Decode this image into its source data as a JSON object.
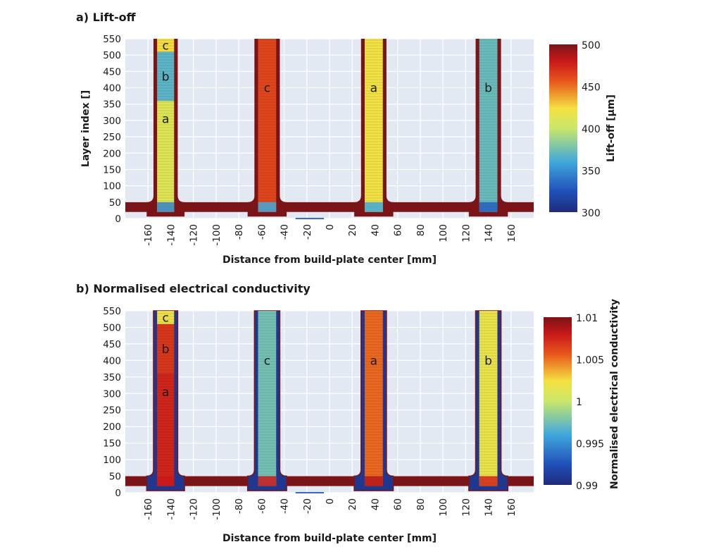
{
  "chart_data": [
    {
      "type": "heatmap",
      "panel": "a",
      "title": "a) Lift-off",
      "xlabel": "Distance from build-plate center [mm]",
      "ylabel": "Layer index []",
      "xlim": [
        -180,
        180
      ],
      "ylim": [
        0,
        550
      ],
      "xticks": [
        -160,
        -140,
        -120,
        -100,
        -80,
        -60,
        -40,
        -20,
        0,
        20,
        40,
        60,
        80,
        100,
        120,
        140,
        160
      ],
      "yticks": [
        0,
        50,
        100,
        150,
        200,
        250,
        300,
        350,
        400,
        450,
        500,
        550
      ],
      "grid": true,
      "colorbar": {
        "label": "Lift-off [µm]",
        "range": [
          300,
          500
        ],
        "ticks": [
          300,
          350,
          400,
          450,
          500
        ],
        "colormap": "jet"
      },
      "background": {
        "value": 500,
        "baseplate_top_layer": 50,
        "baseplate_bottom_layer": 20
      },
      "columns": [
        {
          "x_range": [
            -152,
            -137
          ],
          "segments": [
            {
              "label": "a",
              "layers": [
                20,
                360
              ],
              "value": 412
            },
            {
              "label": "b",
              "layers": [
                360,
                510
              ],
              "value": 368
            },
            {
              "label": "c",
              "layers": [
                510,
                550
              ],
              "value": 425
            }
          ],
          "bottom_value": 345
        },
        {
          "x_range": [
            -63,
            -47
          ],
          "segments": [
            {
              "label": "c",
              "layers": [
                20,
                550
              ],
              "value": 462
            }
          ],
          "bottom_value": 360
        },
        {
          "x_range": [
            31,
            47
          ],
          "segments": [
            {
              "label": "a",
              "layers": [
                20,
                550
              ],
              "value": 422
            }
          ],
          "bottom_value": 360
        },
        {
          "x_range": [
            132,
            148
          ],
          "segments": [
            {
              "label": "b",
              "layers": [
                20,
                550
              ],
              "value": 372
            }
          ],
          "bottom_value": 330
        }
      ]
    },
    {
      "type": "heatmap",
      "panel": "b",
      "title": "b) Normalised electrical conductivity",
      "xlabel": "Distance from build-plate center [mm]",
      "ylabel": "",
      "xlim": [
        -180,
        180
      ],
      "ylim": [
        0,
        550
      ],
      "xticks": [
        -160,
        -140,
        -120,
        -100,
        -80,
        -60,
        -40,
        -20,
        0,
        20,
        40,
        60,
        80,
        100,
        120,
        140,
        160
      ],
      "yticks": [
        0,
        50,
        100,
        150,
        200,
        250,
        300,
        350,
        400,
        450,
        500,
        550
      ],
      "grid": true,
      "colorbar": {
        "label": "Normalised electrical conductivity",
        "range": [
          0.99,
          1.01
        ],
        "ticks": [
          0.99,
          0.995,
          1,
          1.005,
          1.01
        ],
        "tick_labels": [
          "0.99",
          "0.995",
          "1",
          "1.005",
          "1.01"
        ],
        "colormap": "jet"
      },
      "background": {
        "value": 1.01,
        "baseplate_top_layer": 50,
        "baseplate_bottom_layer": 20
      },
      "columns": [
        {
          "x_range": [
            -152,
            -137
          ],
          "segments": [
            {
              "label": "a",
              "layers": [
                20,
                360
              ],
              "value": 1.0075
            },
            {
              "label": "b",
              "layers": [
                360,
                510
              ],
              "value": 1.0068
            },
            {
              "label": "c",
              "layers": [
                510,
                550
              ],
              "value": 1.002
            }
          ],
          "bottom_value": 1.008
        },
        {
          "x_range": [
            -63,
            -47
          ],
          "segments": [
            {
              "label": "c",
              "layers": [
                20,
                550
              ],
              "value": 0.9975
            }
          ],
          "bottom_value": 1.008
        },
        {
          "x_range": [
            31,
            47
          ],
          "segments": [
            {
              "label": "a",
              "layers": [
                20,
                550
              ],
              "value": 1.0052
            }
          ],
          "bottom_value": 1.0085
        },
        {
          "x_range": [
            132,
            148
          ],
          "segments": [
            {
              "label": "b",
              "layers": [
                20,
                550
              ],
              "value": 1.0018
            }
          ],
          "bottom_value": 1.0075
        }
      ]
    }
  ]
}
